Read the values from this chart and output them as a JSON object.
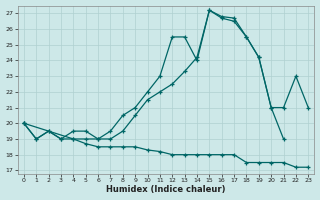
{
  "xlabel": "Humidex (Indice chaleur)",
  "bg_color": "#cde8e8",
  "grid_color": "#b0d0d0",
  "line_color": "#006666",
  "xlim": [
    0,
    23
  ],
  "ylim": [
    17,
    27.3
  ],
  "yticks": [
    17,
    18,
    19,
    20,
    21,
    22,
    23,
    24,
    25,
    26,
    27
  ],
  "xticks": [
    0,
    1,
    2,
    3,
    4,
    5,
    6,
    7,
    8,
    9,
    10,
    11,
    12,
    13,
    14,
    15,
    16,
    17,
    18,
    19,
    20,
    21,
    22,
    23
  ],
  "line1_x": [
    0,
    1,
    2,
    3,
    4,
    5,
    6,
    7,
    8,
    9,
    10,
    11,
    12,
    13,
    14,
    15,
    16,
    17,
    18,
    19,
    20,
    21
  ],
  "line1_y": [
    20.0,
    19.0,
    19.5,
    19.0,
    19.5,
    19.5,
    19.0,
    19.5,
    20.5,
    21.0,
    22.0,
    23.0,
    25.5,
    25.5,
    24.0,
    27.2,
    26.8,
    26.7,
    25.5,
    24.2,
    21.0,
    19.0
  ],
  "line2_x": [
    0,
    1,
    2,
    3,
    4,
    5,
    6,
    7,
    8,
    9,
    10,
    11,
    12,
    13,
    14,
    15,
    16,
    17,
    18,
    19,
    20,
    21,
    22,
    23
  ],
  "line2_y": [
    20.0,
    19.0,
    19.5,
    19.0,
    19.0,
    19.0,
    19.0,
    19.0,
    19.5,
    20.5,
    21.5,
    22.0,
    22.5,
    23.3,
    24.2,
    27.2,
    26.7,
    26.5,
    25.5,
    24.2,
    21.0,
    21.0,
    23.0,
    21.0
  ],
  "line3_x": [
    0,
    4,
    5,
    6,
    7,
    8,
    9,
    10,
    11,
    12,
    13,
    14,
    15,
    16,
    17,
    18,
    19,
    20,
    21,
    22,
    23
  ],
  "line3_y": [
    20.0,
    19.0,
    18.7,
    18.5,
    18.5,
    18.5,
    18.5,
    18.3,
    18.2,
    18.0,
    18.0,
    18.0,
    18.0,
    18.0,
    18.0,
    17.5,
    17.5,
    17.5,
    17.5,
    17.2,
    17.2
  ]
}
